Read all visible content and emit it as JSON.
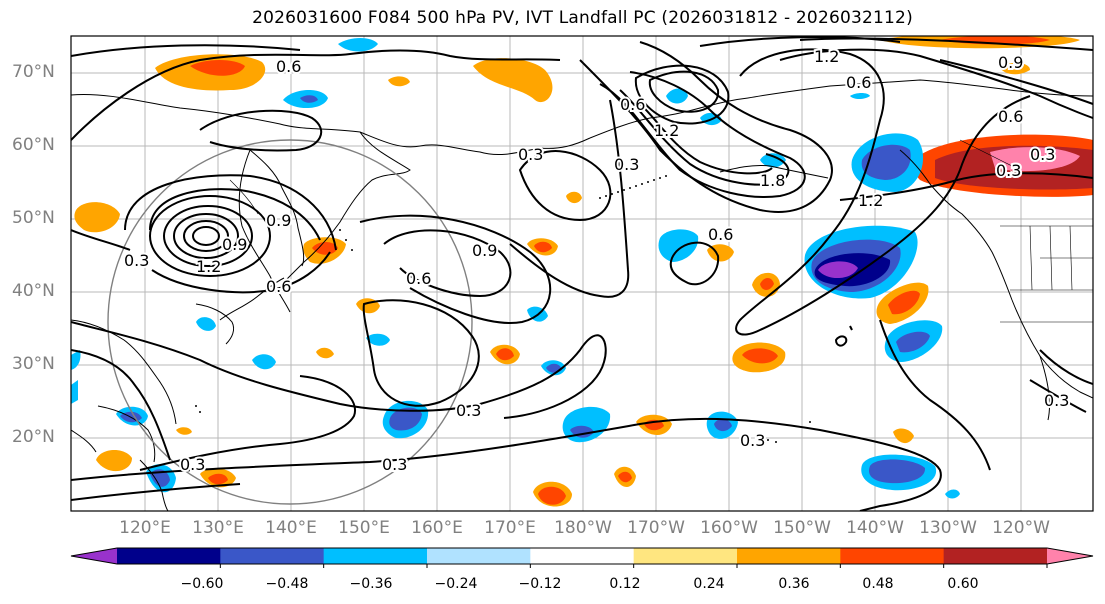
{
  "title": "2026031600 F084 500 hPa PV, IVT Landfall PC (2026031812 - 2026032112)",
  "lat_labels": [
    "70°N",
    "60°N",
    "50°N",
    "40°N",
    "30°N",
    "20°N"
  ],
  "lon_labels": [
    "120°E",
    "130°E",
    "140°E",
    "150°E",
    "160°E",
    "170°E",
    "180°W",
    "170°W",
    "160°W",
    "150°W",
    "140°W",
    "130°W",
    "120°W"
  ],
  "contour_labels": [
    "0.6",
    "0.9",
    "1.2",
    "0.6",
    "0.9",
    "0.6",
    "1.2",
    "1.8",
    "1.2",
    "0.6",
    "0.3",
    "0.3",
    "0.3",
    "0.6",
    "0.9",
    "0.3",
    "0.6",
    "0.9",
    "0.3",
    "0.3",
    "0.3",
    "0.3",
    "1.2",
    "0.6",
    "0.3",
    "0.3"
  ],
  "colorbar": {
    "ticks": [
      "−0.60",
      "−0.48",
      "−0.36",
      "−0.24",
      "−0.12",
      "0.12",
      "0.24",
      "0.36",
      "0.48",
      "0.60"
    ],
    "colors": [
      "#9932cc",
      "#00008b",
      "#3a57c8",
      "#00bfff",
      "#b0e2ff",
      "#ffffff",
      "#ffe680",
      "#ffa500",
      "#ff4500",
      "#b22222",
      "#ff82ab"
    ]
  },
  "colors": {
    "land_line": "#000000",
    "grid": "#b0b0b0",
    "circle": "#808080",
    "label": "#808080"
  }
}
